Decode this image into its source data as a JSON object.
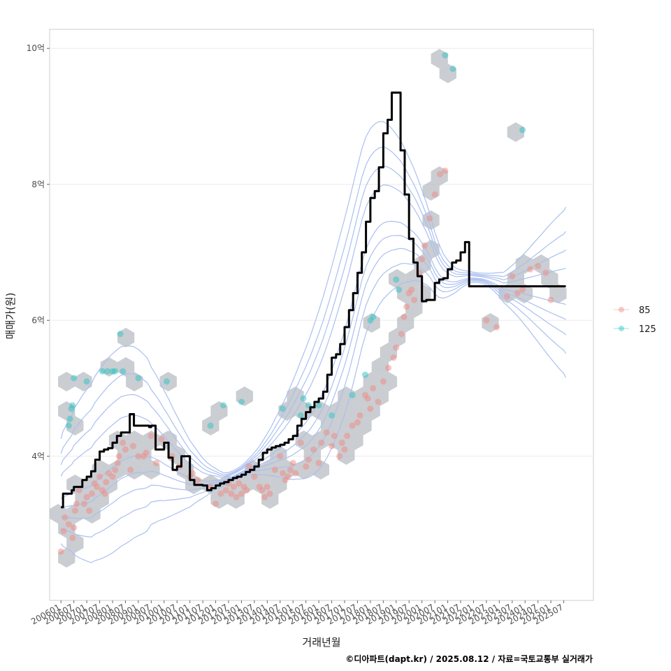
{
  "chart_data": {
    "type": "scatter",
    "xlabel": "거래년월",
    "ylabel": "매매가(원)",
    "caption": "©디아파트(dapt.kr) / 2025.08.12 / 자료=국토교통부 실거래가",
    "x_ticks": [
      "200601",
      "200607",
      "200701",
      "200707",
      "200801",
      "200807",
      "200901",
      "200907",
      "201001",
      "201007",
      "201101",
      "201107",
      "201201",
      "201207",
      "201301",
      "201307",
      "201401",
      "201407",
      "201501",
      "201507",
      "201601",
      "201607",
      "201701",
      "201707",
      "201801",
      "201807",
      "201901",
      "201907",
      "202001",
      "202007",
      "202101",
      "202107",
      "202201",
      "202207",
      "202301",
      "202307",
      "202401",
      "202407",
      "202501",
      "202507"
    ],
    "y_ticks": [
      {
        "value": 4,
        "label": "4억"
      },
      {
        "value": 6,
        "label": "6억"
      },
      {
        "value": 8,
        "label": "8억"
      },
      {
        "value": 10,
        "label": "10억"
      }
    ],
    "xlim": [
      2005.56,
      2026.65
    ],
    "ylim": [
      1.88,
      10.28
    ],
    "grid": true,
    "legend_position": "right",
    "legend": [
      {
        "name": "85",
        "color": "#f08a84"
      },
      {
        "name": "125",
        "color": "#2ec4c4"
      }
    ],
    "colors": {
      "trend_line": "#000000",
      "contour": "#aac0f0",
      "hexbin": "#b8bcc2",
      "point_85": "#f08a84",
      "point_125": "#2ec4c4",
      "panel_border": "#cccccc",
      "grid": "#ebebeb"
    },
    "trend_line": {
      "x": [
        2006.0,
        2006.08,
        2006.25,
        2006.42,
        2006.5,
        2006.67,
        2006.83,
        2007.0,
        2007.17,
        2007.33,
        2007.5,
        2007.67,
        2007.83,
        2008.0,
        2008.17,
        2008.33,
        2008.5,
        2008.67,
        2008.83,
        2009.0,
        2009.17,
        2009.33,
        2009.42,
        2009.5,
        2009.67,
        2009.83,
        2010.0,
        2010.17,
        2010.33,
        2010.5,
        2010.67,
        2010.83,
        2011.0,
        2011.17,
        2011.33,
        2011.5,
        2011.67,
        2011.83,
        2012.0,
        2012.17,
        2012.33,
        2012.5,
        2012.67,
        2012.83,
        2013.0,
        2013.17,
        2013.33,
        2013.5,
        2013.67,
        2013.83,
        2014.0,
        2014.17,
        2014.33,
        2014.5,
        2014.67,
        2014.83,
        2015.0,
        2015.17,
        2015.33,
        2015.5,
        2015.67,
        2015.83,
        2016.0,
        2016.17,
        2016.33,
        2016.5,
        2016.67,
        2016.83,
        2017.0,
        2017.17,
        2017.33,
        2017.5,
        2017.67,
        2017.83,
        2018.0,
        2018.17,
        2018.33,
        2018.5,
        2018.67,
        2018.83,
        2019.0,
        2019.17,
        2019.33,
        2019.5,
        2019.67,
        2019.83,
        2020.0,
        2020.17,
        2020.33,
        2020.5,
        2020.67,
        2020.83,
        2021.0,
        2021.17,
        2021.33,
        2021.5,
        2021.67,
        2021.83,
        2022.0,
        2022.17,
        2022.33,
        2022.5,
        2022.67,
        2022.83,
        2023.0,
        2023.17,
        2023.33,
        2023.5,
        2023.67,
        2023.83,
        2024.0,
        2024.17,
        2024.33,
        2024.5,
        2024.67,
        2024.83,
        2025.0,
        2025.17,
        2025.33,
        2025.5,
        2025.58
      ],
      "y": [
        3.25,
        3.45,
        3.45,
        3.5,
        3.55,
        3.55,
        3.65,
        3.7,
        3.78,
        3.95,
        4.07,
        4.1,
        4.12,
        4.2,
        4.3,
        4.35,
        4.35,
        4.62,
        4.45,
        4.45,
        4.45,
        4.45,
        4.43,
        4.45,
        4.1,
        4.1,
        4.2,
        3.98,
        3.8,
        3.85,
        4.0,
        4.0,
        3.65,
        3.58,
        3.58,
        3.57,
        3.5,
        3.53,
        3.57,
        3.6,
        3.62,
        3.65,
        3.68,
        3.7,
        3.73,
        3.77,
        3.8,
        3.85,
        3.95,
        4.05,
        4.1,
        4.13,
        4.15,
        4.17,
        4.2,
        4.25,
        4.3,
        4.45,
        4.55,
        4.65,
        4.72,
        4.8,
        4.85,
        4.95,
        5.2,
        5.45,
        5.5,
        5.65,
        5.9,
        6.15,
        6.4,
        6.7,
        7.0,
        7.45,
        7.8,
        7.9,
        8.25,
        8.75,
        8.95,
        9.35,
        9.35,
        8.5,
        7.85,
        7.2,
        6.85,
        6.65,
        6.28,
        6.3,
        6.3,
        6.55,
        6.6,
        6.62,
        6.75,
        6.85,
        6.88,
        7.0,
        7.15,
        6.5,
        6.5,
        6.5,
        6.5,
        6.5,
        6.5,
        6.5,
        6.5,
        6.5,
        6.5,
        6.5,
        6.5,
        6.5,
        6.5,
        6.5,
        6.5,
        6.5,
        6.5,
        6.5,
        6.5,
        6.5,
        6.5,
        6.5,
        6.5
      ]
    },
    "series": [
      {
        "name": "85",
        "points": [
          [
            2006.0,
            2.6
          ],
          [
            2006.1,
            2.9
          ],
          [
            2006.15,
            3.1
          ],
          [
            2006.3,
            3.0
          ],
          [
            2006.45,
            2.8
          ],
          [
            2006.5,
            2.95
          ],
          [
            2006.55,
            3.2
          ],
          [
            2006.6,
            3.3
          ],
          [
            2006.7,
            3.5
          ],
          [
            2006.9,
            3.3
          ],
          [
            2007.0,
            3.4
          ],
          [
            2007.1,
            3.2
          ],
          [
            2007.2,
            3.45
          ],
          [
            2007.3,
            3.6
          ],
          [
            2007.4,
            3.55
          ],
          [
            2007.5,
            3.7
          ],
          [
            2007.6,
            3.5
          ],
          [
            2007.7,
            3.45
          ],
          [
            2007.75,
            3.62
          ],
          [
            2007.85,
            3.75
          ],
          [
            2008.0,
            3.7
          ],
          [
            2008.1,
            3.8
          ],
          [
            2008.2,
            3.9
          ],
          [
            2008.25,
            4.0
          ],
          [
            2008.4,
            4.2
          ],
          [
            2008.5,
            4.1
          ],
          [
            2008.7,
            3.8
          ],
          [
            2008.8,
            4.15
          ],
          [
            2009.0,
            4.0
          ],
          [
            2009.2,
            4.0
          ],
          [
            2009.3,
            4.05
          ],
          [
            2009.5,
            4.3
          ],
          [
            2009.7,
            3.9
          ],
          [
            2009.9,
            4.25
          ],
          [
            2010.3,
            4.0
          ],
          [
            2010.6,
            3.85
          ],
          [
            2011.0,
            3.7
          ],
          [
            2011.1,
            3.75
          ],
          [
            2011.3,
            3.65
          ],
          [
            2011.8,
            3.55
          ],
          [
            2012.0,
            3.3
          ],
          [
            2012.2,
            3.45
          ],
          [
            2012.4,
            3.5
          ],
          [
            2012.5,
            3.6
          ],
          [
            2012.6,
            3.45
          ],
          [
            2012.7,
            3.55
          ],
          [
            2012.8,
            3.4
          ],
          [
            2012.9,
            3.6
          ],
          [
            2013.0,
            3.45
          ],
          [
            2013.1,
            3.55
          ],
          [
            2013.2,
            3.5
          ],
          [
            2013.3,
            3.85
          ],
          [
            2013.5,
            3.7
          ],
          [
            2013.7,
            3.55
          ],
          [
            2013.8,
            3.5
          ],
          [
            2013.9,
            3.4
          ],
          [
            2014.0,
            3.55
          ],
          [
            2014.1,
            3.45
          ],
          [
            2014.3,
            3.8
          ],
          [
            2014.5,
            4.0
          ],
          [
            2014.6,
            3.75
          ],
          [
            2014.7,
            3.65
          ],
          [
            2014.8,
            3.7
          ],
          [
            2014.9,
            3.8
          ],
          [
            2015.0,
            3.9
          ],
          [
            2015.1,
            3.75
          ],
          [
            2015.3,
            4.2
          ],
          [
            2015.5,
            3.85
          ],
          [
            2015.6,
            3.95
          ],
          [
            2015.8,
            4.1
          ],
          [
            2016.0,
            3.9
          ],
          [
            2016.1,
            4.2
          ],
          [
            2016.3,
            4.35
          ],
          [
            2016.5,
            4.15
          ],
          [
            2016.6,
            4.3
          ],
          [
            2016.8,
            4.0
          ],
          [
            2016.9,
            4.2
          ],
          [
            2017.0,
            4.1
          ],
          [
            2017.1,
            4.3
          ],
          [
            2017.3,
            4.45
          ],
          [
            2017.5,
            4.5
          ],
          [
            2017.6,
            4.6
          ],
          [
            2017.8,
            4.9
          ],
          [
            2017.9,
            4.85
          ],
          [
            2018.0,
            4.7
          ],
          [
            2018.1,
            5.0
          ],
          [
            2018.3,
            4.8
          ],
          [
            2018.5,
            5.1
          ],
          [
            2018.7,
            5.3
          ],
          [
            2018.9,
            5.45
          ],
          [
            2019.0,
            5.6
          ],
          [
            2019.2,
            5.8
          ],
          [
            2019.3,
            6.05
          ],
          [
            2019.4,
            6.2
          ],
          [
            2019.5,
            6.4
          ],
          [
            2019.6,
            6.45
          ],
          [
            2019.7,
            6.3
          ],
          [
            2019.9,
            6.7
          ],
          [
            2020.0,
            6.9
          ],
          [
            2020.1,
            7.1
          ],
          [
            2020.3,
            7.5
          ],
          [
            2020.5,
            7.85
          ],
          [
            2020.7,
            8.15
          ],
          [
            2020.9,
            8.2
          ],
          [
            2022.5,
            6.0
          ],
          [
            2022.9,
            5.9
          ],
          [
            2023.3,
            6.35
          ],
          [
            2023.5,
            6.65
          ],
          [
            2023.7,
            6.4
          ],
          [
            2023.9,
            6.45
          ],
          [
            2024.2,
            6.75
          ],
          [
            2024.5,
            6.8
          ],
          [
            2024.8,
            6.7
          ],
          [
            2025.0,
            6.3
          ]
        ]
      },
      {
        "name": "125",
        "points": [
          [
            2006.3,
            4.45
          ],
          [
            2006.35,
            4.55
          ],
          [
            2006.4,
            4.7
          ],
          [
            2006.45,
            4.75
          ],
          [
            2006.5,
            5.15
          ],
          [
            2007.0,
            5.1
          ],
          [
            2007.6,
            5.25
          ],
          [
            2007.8,
            5.25
          ],
          [
            2008.0,
            5.25
          ],
          [
            2008.1,
            5.25
          ],
          [
            2008.3,
            5.8
          ],
          [
            2008.4,
            5.25
          ],
          [
            2009.0,
            5.15
          ],
          [
            2010.1,
            5.1
          ],
          [
            2011.8,
            4.45
          ],
          [
            2012.3,
            4.75
          ],
          [
            2013.0,
            4.8
          ],
          [
            2014.6,
            4.7
          ],
          [
            2015.3,
            4.6
          ],
          [
            2015.4,
            4.85
          ],
          [
            2015.6,
            4.75
          ],
          [
            2016.0,
            4.75
          ],
          [
            2016.5,
            4.6
          ],
          [
            2017.3,
            4.9
          ],
          [
            2017.8,
            5.2
          ],
          [
            2018.0,
            6.0
          ],
          [
            2018.1,
            6.05
          ],
          [
            2019.0,
            6.6
          ],
          [
            2019.1,
            6.45
          ],
          [
            2020.9,
            9.9
          ],
          [
            2021.2,
            9.7
          ],
          [
            2023.9,
            8.8
          ]
        ]
      }
    ]
  }
}
